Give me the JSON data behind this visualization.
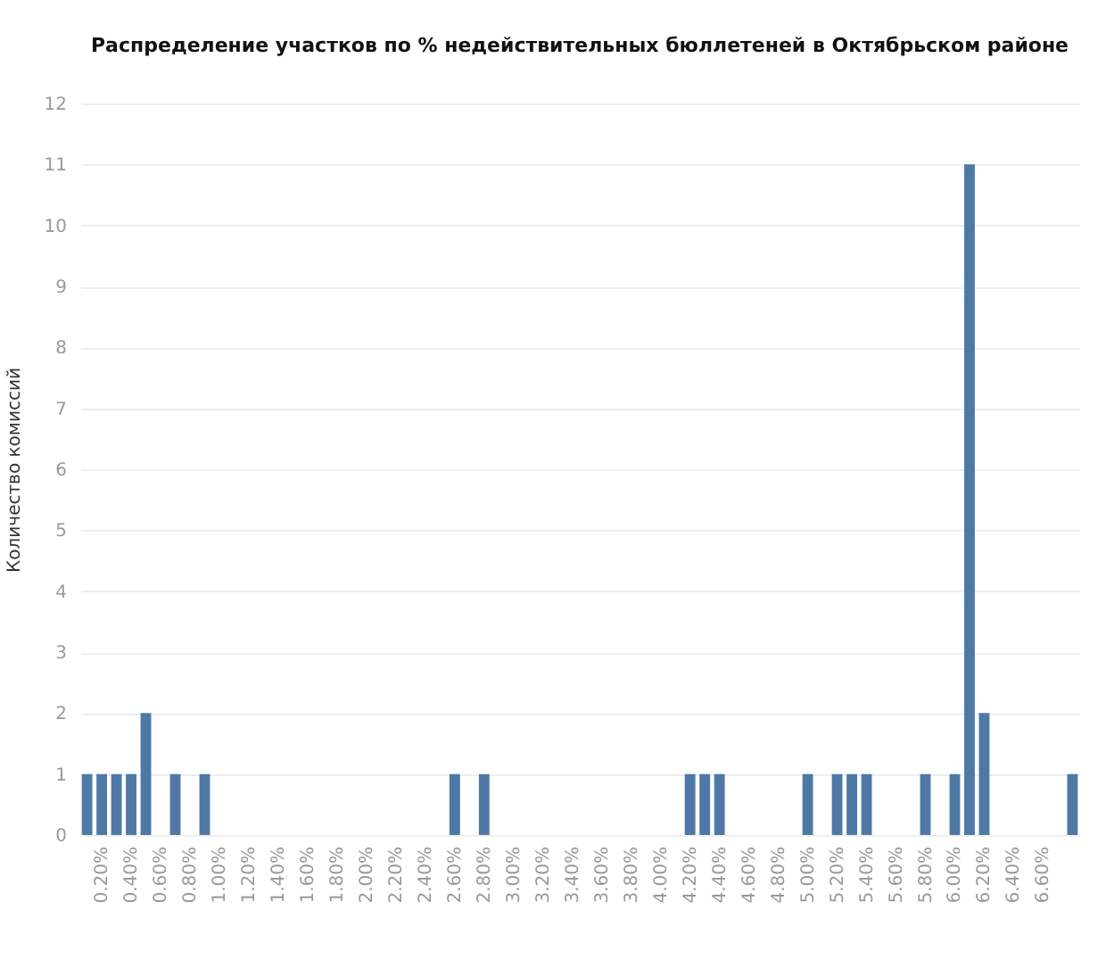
{
  "chart_data": {
    "type": "bar",
    "title": "Распределение участков по % недействительных бюллетеней в Октябрьском районе",
    "ylabel": "Количество комиссий",
    "categories": [
      null,
      "0.20%",
      null,
      "0.40%",
      null,
      "0.60%",
      null,
      "0.80%",
      null,
      "1.00%",
      null,
      "1.20%",
      null,
      "1.40%",
      null,
      "1.60%",
      null,
      "1.80%",
      null,
      "2.00%",
      null,
      "2.20%",
      null,
      "2.40%",
      null,
      "2.60%",
      null,
      "2.80%",
      null,
      "3.00%",
      null,
      "3.20%",
      null,
      "3.40%",
      null,
      "3.60%",
      null,
      "3.80%",
      null,
      "4.00%",
      null,
      "4.20%",
      null,
      "4.40%",
      null,
      "4.60%",
      null,
      "4.80%",
      null,
      "5.00%",
      null,
      "5.20%",
      null,
      "5.40%",
      null,
      "5.60%",
      null,
      "5.80%",
      null,
      "6.00%",
      null,
      "6.20%",
      null,
      "6.40%",
      null,
      "6.60%",
      null,
      null
    ],
    "values": [
      1,
      1,
      1,
      1,
      2,
      0,
      1,
      0,
      1,
      0,
      0,
      0,
      0,
      0,
      0,
      0,
      0,
      0,
      0,
      0,
      0,
      0,
      0,
      0,
      0,
      1,
      0,
      1,
      0,
      0,
      0,
      0,
      0,
      0,
      0,
      0,
      0,
      0,
      0,
      0,
      0,
      1,
      1,
      1,
      0,
      0,
      0,
      0,
      0,
      1,
      0,
      1,
      1,
      1,
      0,
      0,
      0,
      1,
      0,
      1,
      11,
      2,
      0,
      0,
      0,
      0,
      0,
      1
    ],
    "color": "#4e79a7",
    "ylim": [
      0,
      12
    ],
    "yticks": [
      0,
      1,
      2,
      3,
      4,
      5,
      6,
      7,
      8,
      9,
      10,
      11,
      12
    ],
    "grid": "y"
  }
}
